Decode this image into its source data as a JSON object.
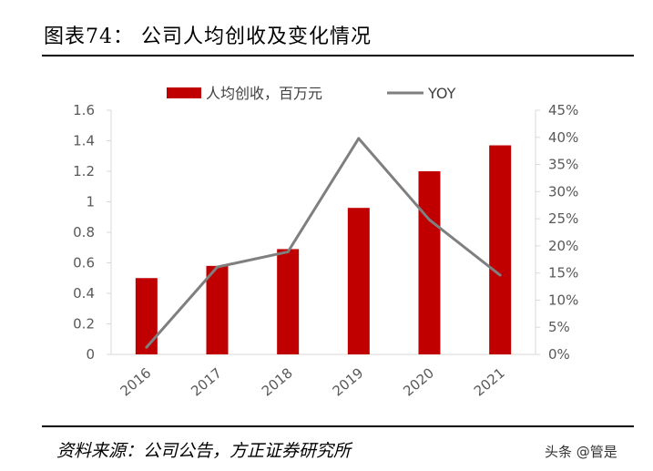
{
  "title": "图表74：   公司人均创收及变化情况",
  "source": "资料来源：公司公告，方正证券研究所",
  "watermark": "头条 @管是",
  "chart_data": {
    "type": "bar+line",
    "categories": [
      "2016",
      "2017",
      "2018",
      "2019",
      "2020",
      "2021"
    ],
    "series": [
      {
        "name": "人均创收，百万元",
        "type": "bar",
        "axis": "left",
        "color": "#C00000",
        "values": [
          0.5,
          0.58,
          0.69,
          0.96,
          1.2,
          1.37
        ]
      },
      {
        "name": "YOY",
        "type": "line",
        "axis": "right",
        "color": "#7F7F7F",
        "values": [
          1.3,
          16.1,
          18.9,
          39.8,
          24.8,
          14.6
        ]
      }
    ],
    "left_axis": {
      "ylim": [
        0,
        1.6
      ],
      "ticks": [
        "0",
        "0.2",
        "0.4",
        "0.6",
        "0.8",
        "1",
        "1.2",
        "1.4",
        "1.6"
      ]
    },
    "right_axis": {
      "ylim": [
        0,
        45
      ],
      "unit": "%",
      "ticks": [
        "0%",
        "5%",
        "10%",
        "15%",
        "20%",
        "25%",
        "30%",
        "35%",
        "40%",
        "45%"
      ]
    },
    "legend": "top",
    "grid": false
  }
}
